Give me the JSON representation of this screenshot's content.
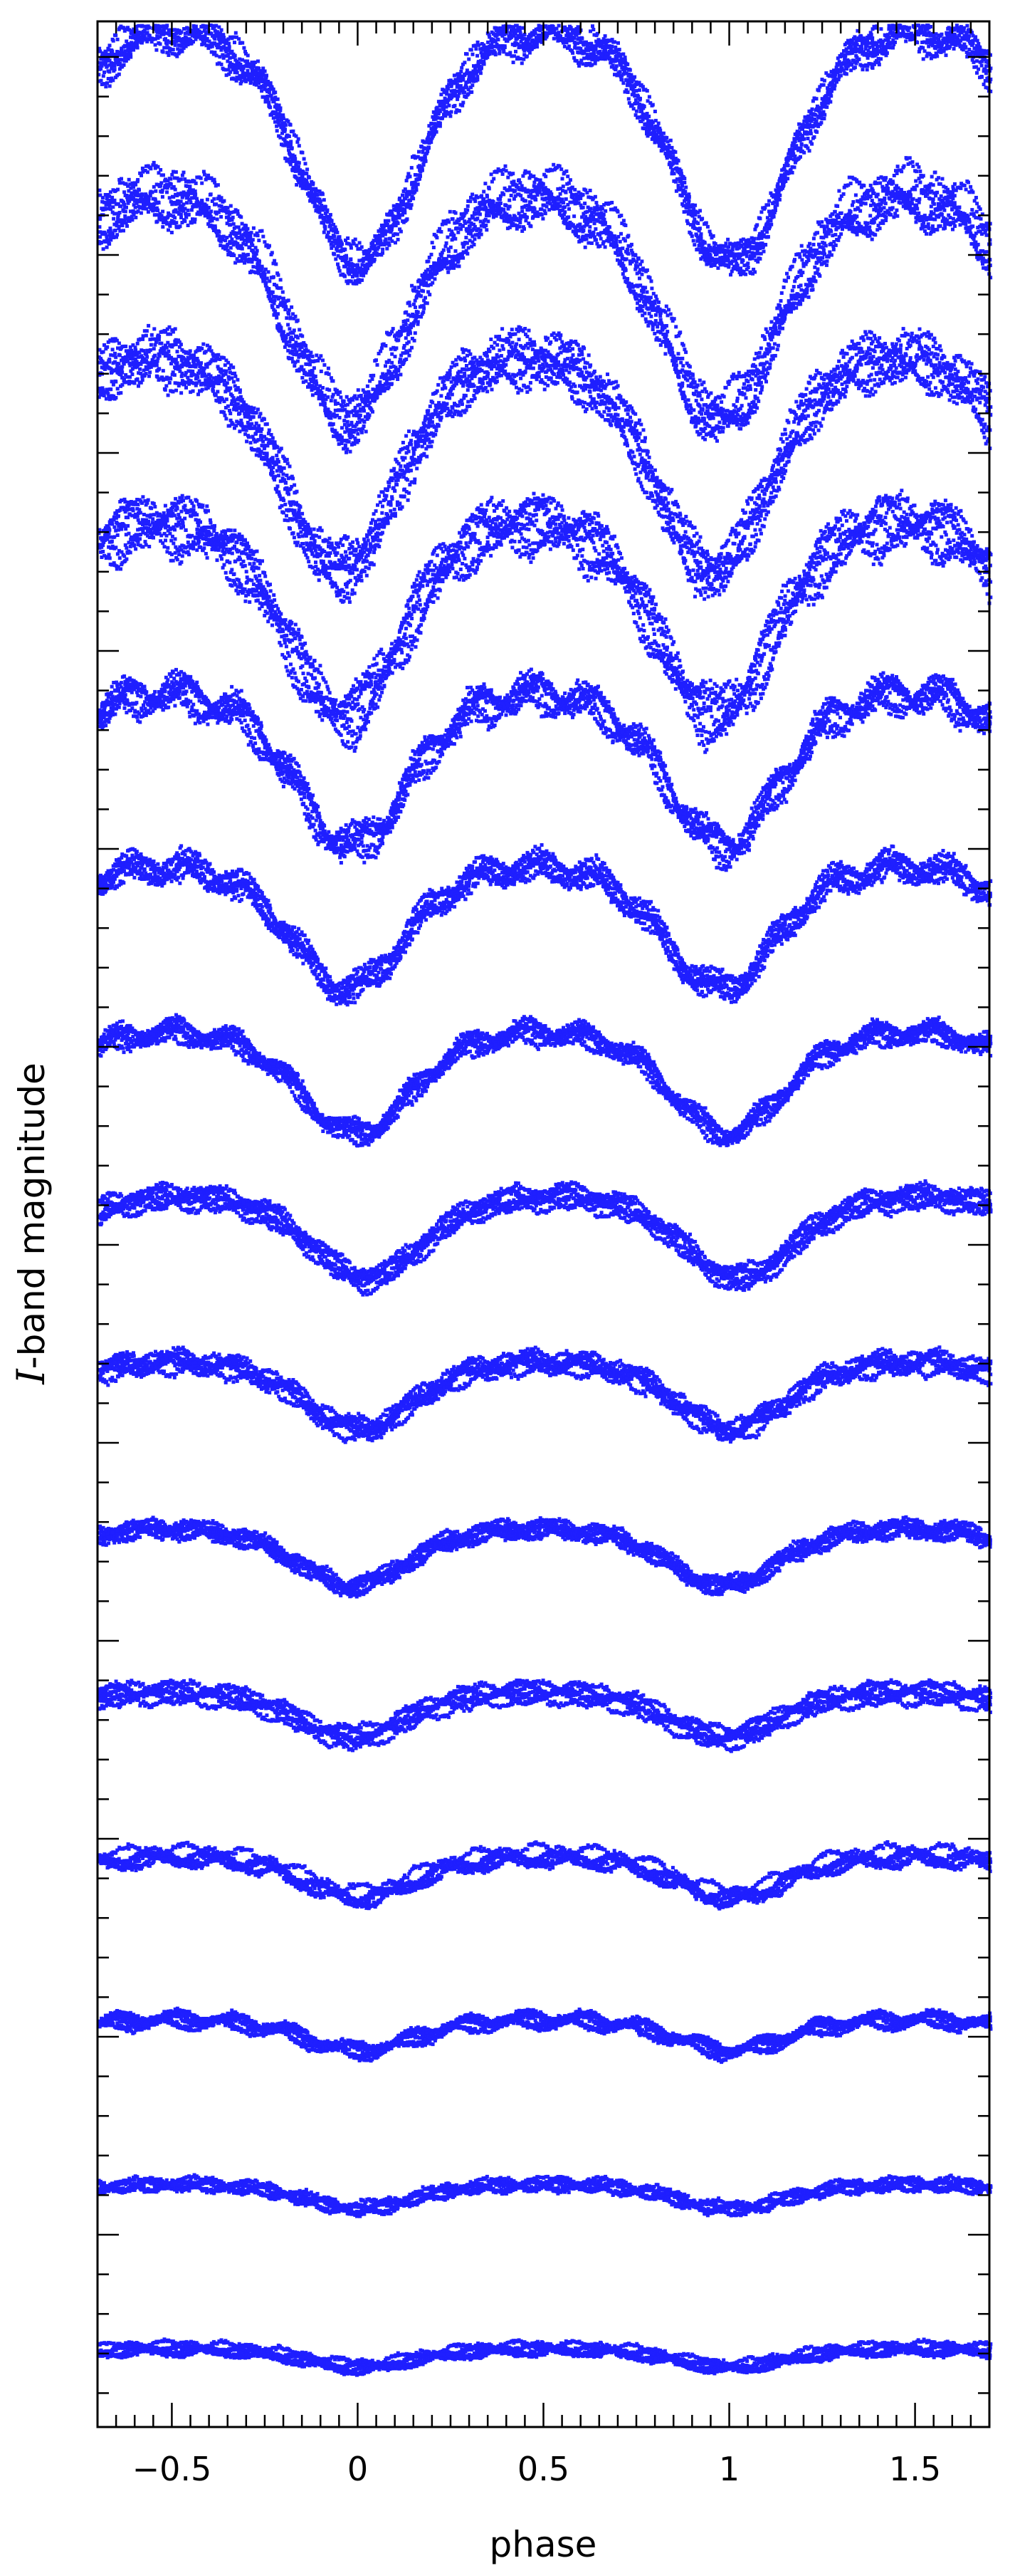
{
  "chart_data": {
    "type": "scatter",
    "title": "",
    "xlabel": "phase",
    "ylabel_symbol": "I",
    "ylabel_text": "-band magnitude",
    "xlim": [
      -0.7,
      1.7
    ],
    "x_ticks": [
      -0.5,
      0,
      0.5,
      1,
      1.5
    ],
    "x_tick_labels": [
      "−0.5",
      "0",
      "0.5",
      "1",
      "1.5"
    ],
    "y_tick_labels_shown": false,
    "grid": false,
    "marker_color": "#1f1fff",
    "series": [
      {
        "depth": 0.115,
        "min_phase": 0.0,
        "jitter": 0.012
      },
      {
        "depth": 0.11,
        "min_phase": -0.03,
        "jitter": 0.015
      },
      {
        "depth": 0.105,
        "min_phase": -0.05,
        "jitter": 0.014
      },
      {
        "depth": 0.095,
        "min_phase": -0.04,
        "jitter": 0.015
      },
      {
        "depth": 0.075,
        "min_phase": -0.02,
        "jitter": 0.013
      },
      {
        "depth": 0.06,
        "min_phase": -0.03,
        "jitter": 0.01
      },
      {
        "depth": 0.05,
        "min_phase": -0.01,
        "jitter": 0.008
      },
      {
        "depth": 0.04,
        "min_phase": 0.02,
        "jitter": 0.007
      },
      {
        "depth": 0.033,
        "min_phase": 0.0,
        "jitter": 0.007
      },
      {
        "depth": 0.028,
        "min_phase": -0.02,
        "jitter": 0.006
      },
      {
        "depth": 0.022,
        "min_phase": -0.02,
        "jitter": 0.006
      },
      {
        "depth": 0.02,
        "min_phase": 0.0,
        "jitter": 0.006
      },
      {
        "depth": 0.015,
        "min_phase": 0.0,
        "jitter": 0.005
      },
      {
        "depth": 0.012,
        "min_phase": 0.0,
        "jitter": 0.005
      },
      {
        "depth": 0.009,
        "min_phase": 0.0,
        "jitter": 0.004
      }
    ]
  }
}
